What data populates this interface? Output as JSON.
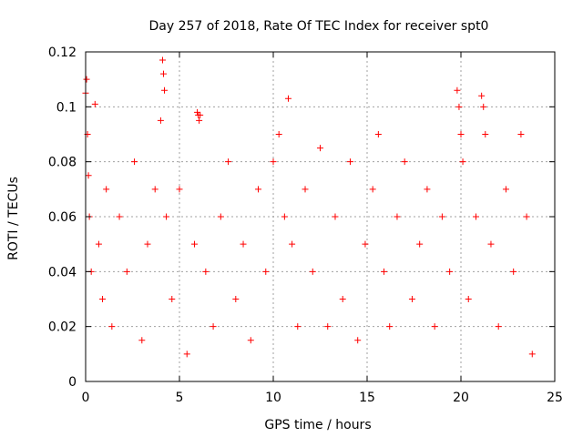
{
  "chart_data": {
    "type": "scatter",
    "title": "Day 257 of 2018, Rate Of TEC Index for receiver spt0",
    "xlabel": "GPS time / hours",
    "ylabel": "ROTI / TECUs",
    "xlim": [
      0,
      25
    ],
    "ylim": [
      0,
      0.12
    ],
    "xticks": [
      0,
      5,
      10,
      15,
      20,
      25
    ],
    "xtick_labels": [
      "0",
      "5",
      "10",
      "15",
      "20",
      "25"
    ],
    "yticks": [
      0,
      0.02,
      0.04,
      0.06,
      0.08,
      0.1,
      0.12
    ],
    "ytick_labels": [
      "0",
      "0.02",
      "0.04",
      "0.06",
      "0.08",
      "0.1",
      "0.12"
    ],
    "grid": true,
    "marker": "+",
    "series": [
      {
        "name": "ROTI",
        "color": "#ff0000",
        "x": [
          0.0,
          0.05,
          0.1,
          0.15,
          0.2,
          0.3,
          0.5,
          0.7,
          0.9,
          1.1,
          1.4,
          1.8,
          2.2,
          2.6,
          3.0,
          3.3,
          3.7,
          4.0,
          4.1,
          4.15,
          4.2,
          4.3,
          4.6,
          5.0,
          5.4,
          5.8,
          5.95,
          6.0,
          6.05,
          6.1,
          6.4,
          6.8,
          7.2,
          7.6,
          8.0,
          8.4,
          8.8,
          9.2,
          9.6,
          10.0,
          10.3,
          10.6,
          10.8,
          11.0,
          11.3,
          11.7,
          12.1,
          12.5,
          12.9,
          13.3,
          13.7,
          14.1,
          14.5,
          14.9,
          15.3,
          15.6,
          15.9,
          16.2,
          16.6,
          17.0,
          17.4,
          17.8,
          18.2,
          18.6,
          19.0,
          19.4,
          19.8,
          19.9,
          20.0,
          20.1,
          20.4,
          20.8,
          21.1,
          21.2,
          21.3,
          21.6,
          22.0,
          22.4,
          22.8,
          23.2,
          23.5,
          23.8
        ],
        "y": [
          0.105,
          0.11,
          0.09,
          0.075,
          0.06,
          0.04,
          0.101,
          0.05,
          0.03,
          0.07,
          0.02,
          0.06,
          0.04,
          0.08,
          0.015,
          0.05,
          0.07,
          0.095,
          0.117,
          0.112,
          0.106,
          0.06,
          0.03,
          0.07,
          0.01,
          0.05,
          0.098,
          0.097,
          0.095,
          0.097,
          0.04,
          0.02,
          0.06,
          0.08,
          0.03,
          0.05,
          0.015,
          0.07,
          0.04,
          0.08,
          0.09,
          0.06,
          0.103,
          0.05,
          0.02,
          0.07,
          0.04,
          0.085,
          0.02,
          0.06,
          0.03,
          0.08,
          0.015,
          0.05,
          0.07,
          0.09,
          0.04,
          0.02,
          0.06,
          0.08,
          0.03,
          0.05,
          0.07,
          0.02,
          0.06,
          0.04,
          0.106,
          0.1,
          0.09,
          0.08,
          0.03,
          0.06,
          0.104,
          0.1,
          0.09,
          0.05,
          0.02,
          0.07,
          0.04,
          0.09,
          0.06,
          0.01
        ]
      }
    ]
  }
}
